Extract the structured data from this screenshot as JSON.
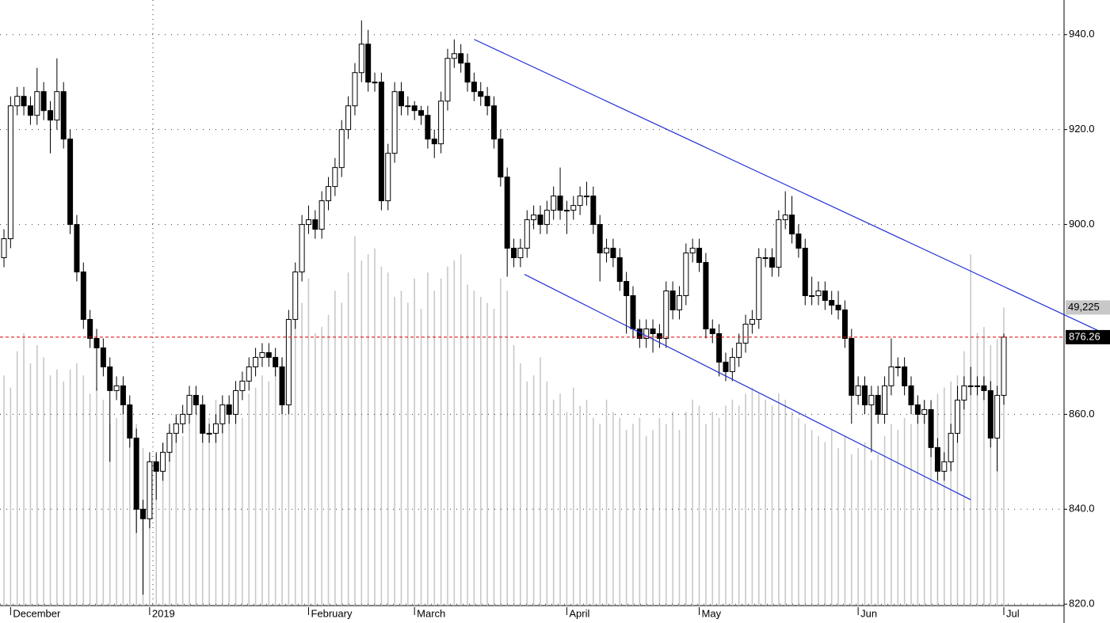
{
  "chart_data": {
    "type": "candlestick",
    "open": [
      893,
      897,
      925,
      927,
      925,
      923,
      928,
      924,
      922,
      928,
      918,
      900,
      890,
      880,
      876,
      874,
      870,
      865,
      866,
      862,
      855,
      840,
      838,
      850,
      848,
      852,
      856,
      858,
      860,
      864,
      862,
      856,
      856,
      858,
      862,
      860,
      865,
      867,
      870,
      872,
      873,
      872,
      870,
      862,
      880,
      890,
      900,
      901,
      899,
      905,
      908,
      912,
      920,
      925,
      932,
      938,
      930,
      930,
      905,
      915,
      928,
      925,
      925,
      924,
      923,
      918,
      917,
      926,
      935,
      936,
      934,
      930,
      928,
      927,
      925,
      918,
      910,
      895,
      893,
      895,
      901,
      902,
      900,
      903,
      906,
      903,
      903,
      904,
      906,
      906,
      900,
      894,
      895,
      893,
      888,
      885,
      878,
      876,
      878,
      877,
      876,
      886,
      882,
      885,
      894,
      895,
      892,
      878,
      877,
      871,
      869,
      872,
      875,
      879,
      880,
      893,
      893,
      891,
      901,
      902,
      898,
      895,
      885,
      885,
      886,
      884,
      883,
      882,
      876,
      864,
      866,
      862,
      864,
      860,
      866,
      870,
      870,
      866,
      862,
      860,
      861,
      853,
      848,
      850,
      856,
      863,
      866,
      866,
      866,
      865,
      855,
      864
    ],
    "high": [
      899,
      927,
      929,
      929,
      927,
      933,
      930,
      926,
      935,
      930,
      920,
      902,
      892,
      882,
      878,
      876,
      872,
      868,
      868,
      864,
      857,
      842,
      852,
      852,
      854,
      858,
      860,
      862,
      866,
      866,
      864,
      858,
      860,
      864,
      864,
      867,
      869,
      872,
      874,
      875,
      875,
      874,
      872,
      882,
      892,
      902,
      904,
      903,
      907,
      910,
      914,
      922,
      927,
      934,
      943,
      941,
      932,
      932,
      917,
      930,
      930,
      927,
      926,
      925,
      925,
      920,
      928,
      937,
      939,
      938,
      936,
      932,
      930,
      929,
      927,
      920,
      912,
      897,
      897,
      903,
      904,
      904,
      905,
      908,
      912,
      905,
      906,
      908,
      909,
      908,
      902,
      897,
      897,
      895,
      890,
      887,
      880,
      880,
      880,
      879,
      888,
      888,
      887,
      896,
      897,
      897,
      894,
      880,
      879,
      873,
      874,
      877,
      881,
      882,
      895,
      895,
      895,
      903,
      907,
      906,
      900,
      897,
      889,
      888,
      888,
      886,
      886,
      884,
      878,
      868,
      868,
      866,
      866,
      868,
      876,
      872,
      872,
      868,
      864,
      863,
      863,
      855,
      852,
      858,
      866,
      868,
      870,
      868,
      868,
      867,
      866,
      877
    ],
    "low": [
      891,
      895,
      923,
      923,
      921,
      921,
      922,
      915,
      920,
      916,
      898,
      888,
      878,
      874,
      865,
      868,
      850,
      863,
      860,
      853,
      835,
      822,
      836,
      842,
      846,
      850,
      854,
      856,
      858,
      860,
      854,
      854,
      854,
      856,
      858,
      858,
      863,
      865,
      868,
      870,
      870,
      868,
      860,
      860,
      878,
      888,
      898,
      897,
      897,
      903,
      906,
      910,
      918,
      923,
      930,
      928,
      928,
      903,
      903,
      913,
      923,
      923,
      922,
      921,
      916,
      914,
      915,
      924,
      933,
      932,
      928,
      926,
      925,
      923,
      916,
      908,
      889,
      891,
      891,
      893,
      899,
      898,
      898,
      901,
      901,
      898,
      901,
      902,
      904,
      898,
      888,
      892,
      891,
      886,
      877,
      876,
      874,
      874,
      873,
      874,
      874,
      880,
      880,
      883,
      892,
      890,
      876,
      875,
      868,
      867,
      867,
      870,
      873,
      877,
      878,
      891,
      889,
      889,
      899,
      896,
      893,
      883,
      883,
      883,
      882,
      881,
      880,
      874,
      858,
      862,
      860,
      852,
      858,
      858,
      864,
      868,
      864,
      860,
      858,
      858,
      851,
      846,
      846,
      848,
      854,
      861,
      864,
      864,
      863,
      853,
      848,
      862
    ],
    "close": [
      897,
      925,
      927,
      925,
      923,
      928,
      924,
      922,
      928,
      918,
      900,
      890,
      880,
      876,
      874,
      870,
      865,
      866,
      862,
      855,
      840,
      838,
      850,
      848,
      852,
      856,
      858,
      860,
      864,
      862,
      856,
      856,
      858,
      862,
      860,
      865,
      867,
      870,
      872,
      873,
      872,
      870,
      862,
      880,
      890,
      900,
      901,
      899,
      905,
      908,
      912,
      920,
      925,
      932,
      938,
      930,
      930,
      905,
      915,
      928,
      925,
      925,
      924,
      923,
      918,
      917,
      926,
      935,
      936,
      934,
      930,
      928,
      927,
      925,
      918,
      910,
      895,
      893,
      895,
      901,
      902,
      900,
      903,
      906,
      903,
      903,
      904,
      906,
      906,
      900,
      894,
      895,
      893,
      888,
      885,
      878,
      876,
      878,
      877,
      876,
      886,
      882,
      885,
      894,
      895,
      892,
      878,
      877,
      871,
      869,
      872,
      875,
      879,
      880,
      893,
      893,
      891,
      901,
      902,
      898,
      895,
      885,
      885,
      886,
      884,
      883,
      882,
      876,
      864,
      866,
      862,
      864,
      860,
      866,
      870,
      870,
      866,
      862,
      860,
      861,
      853,
      848,
      850,
      856,
      863,
      866,
      866,
      866,
      865,
      855,
      864,
      876.26
    ],
    "volume": [
      38000,
      36000,
      42000,
      45000,
      40000,
      43000,
      41000,
      38000,
      39000,
      37000,
      39000,
      40000,
      38000,
      35000,
      36000,
      34000,
      30000,
      31000,
      33000,
      29000,
      30000,
      26000,
      24000,
      25000,
      27000,
      29000,
      31000,
      28000,
      30000,
      32000,
      33000,
      31000,
      34000,
      30000,
      32000,
      33000,
      31000,
      35000,
      36000,
      38000,
      37000,
      39000,
      41000,
      47000,
      48000,
      50000,
      54000,
      45000,
      46000,
      48000,
      52000,
      50000,
      55000,
      61000,
      57000,
      58000,
      59000,
      56000,
      55000,
      51000,
      52000,
      50000,
      54000,
      49000,
      55000,
      52000,
      54000,
      56000,
      57000,
      58000,
      53000,
      52000,
      51000,
      50000,
      49000,
      54000,
      52000,
      43000,
      40000,
      37000,
      38000,
      41000,
      37000,
      34000,
      35000,
      32000,
      36000,
      33000,
      34000,
      31000,
      30000,
      34000,
      32000,
      31000,
      29000,
      30000,
      31000,
      28000,
      29000,
      31000,
      30000,
      32000,
      29000,
      32000,
      34000,
      33000,
      30000,
      32000,
      31000,
      33000,
      34000,
      33000,
      35000,
      36000,
      35000,
      34000,
      33000,
      35000,
      34000,
      32000,
      31000,
      30000,
      29000,
      28000,
      27000,
      29000,
      26000,
      28000,
      25000,
      26000,
      27000,
      24000,
      25000,
      28000,
      30000,
      29000,
      31000,
      30000,
      33000,
      34000,
      32000,
      35000,
      36000,
      37000,
      38000,
      42000,
      58000,
      45000,
      46000,
      43000,
      44000,
      49225
    ],
    "volume_lim": [
      0,
      100000
    ],
    "volume_label": {
      "value": 49225,
      "label": "49,225"
    },
    "last_price": 876.26,
    "ylim": [
      819.7,
      947.3
    ],
    "yticks": [
      {
        "value": 940,
        "label": "940.0"
      },
      {
        "value": 920,
        "label": "920.0"
      },
      {
        "value": 900,
        "label": "900.0"
      },
      {
        "value": 860,
        "label": "860.0"
      },
      {
        "value": 840,
        "label": "840.0"
      },
      {
        "value": 820,
        "label": "820.0"
      }
    ],
    "xticks": [
      {
        "index": 1,
        "label": "December"
      },
      {
        "index": 22,
        "label": "2019"
      },
      {
        "index": 46,
        "label": "February"
      },
      {
        "index": 62,
        "label": "March"
      },
      {
        "index": 85,
        "label": "April"
      },
      {
        "index": 105,
        "label": "May"
      },
      {
        "index": 129,
        "label": "Jun"
      },
      {
        "index": 151,
        "label": "Jul"
      }
    ],
    "trendlines": [
      {
        "color": "#1f2fd6",
        "start": [
          71,
          939
        ],
        "end": [
          167,
          876.5
        ]
      },
      {
        "color": "#1f2fd6",
        "start": [
          78.6,
          889.5
        ],
        "end": [
          146,
          842
        ]
      }
    ],
    "grid": true
  }
}
